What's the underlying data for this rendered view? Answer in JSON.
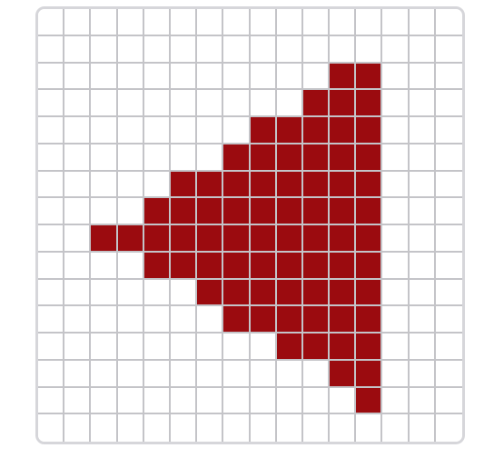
{
  "grid": {
    "rows": 16,
    "cols": 16,
    "colors": {
      "filled": "#9b0b0f",
      "empty": "#ffffff",
      "grid_line": "#c4c4c8",
      "frame": "#d6d6da"
    },
    "filled_cells": [
      [
        2,
        11
      ],
      [
        2,
        12
      ],
      [
        3,
        10
      ],
      [
        3,
        11
      ],
      [
        3,
        12
      ],
      [
        4,
        8
      ],
      [
        4,
        9
      ],
      [
        4,
        10
      ],
      [
        4,
        11
      ],
      [
        4,
        12
      ],
      [
        5,
        7
      ],
      [
        5,
        8
      ],
      [
        5,
        9
      ],
      [
        5,
        10
      ],
      [
        5,
        11
      ],
      [
        5,
        12
      ],
      [
        6,
        5
      ],
      [
        6,
        6
      ],
      [
        6,
        7
      ],
      [
        6,
        8
      ],
      [
        6,
        9
      ],
      [
        6,
        10
      ],
      [
        6,
        11
      ],
      [
        6,
        12
      ],
      [
        7,
        4
      ],
      [
        7,
        5
      ],
      [
        7,
        6
      ],
      [
        7,
        7
      ],
      [
        7,
        8
      ],
      [
        7,
        9
      ],
      [
        7,
        10
      ],
      [
        7,
        11
      ],
      [
        7,
        12
      ],
      [
        8,
        2
      ],
      [
        8,
        3
      ],
      [
        8,
        4
      ],
      [
        8,
        5
      ],
      [
        8,
        6
      ],
      [
        8,
        7
      ],
      [
        8,
        8
      ],
      [
        8,
        9
      ],
      [
        8,
        10
      ],
      [
        8,
        11
      ],
      [
        8,
        12
      ],
      [
        9,
        4
      ],
      [
        9,
        5
      ],
      [
        9,
        6
      ],
      [
        9,
        7
      ],
      [
        9,
        8
      ],
      [
        9,
        9
      ],
      [
        9,
        10
      ],
      [
        9,
        11
      ],
      [
        9,
        12
      ],
      [
        10,
        6
      ],
      [
        10,
        7
      ],
      [
        10,
        8
      ],
      [
        10,
        9
      ],
      [
        10,
        10
      ],
      [
        10,
        11
      ],
      [
        10,
        12
      ],
      [
        11,
        7
      ],
      [
        11,
        8
      ],
      [
        11,
        9
      ],
      [
        11,
        10
      ],
      [
        11,
        11
      ],
      [
        11,
        12
      ],
      [
        12,
        9
      ],
      [
        12,
        10
      ],
      [
        12,
        11
      ],
      [
        12,
        12
      ],
      [
        13,
        11
      ],
      [
        13,
        12
      ],
      [
        14,
        12
      ]
    ]
  }
}
